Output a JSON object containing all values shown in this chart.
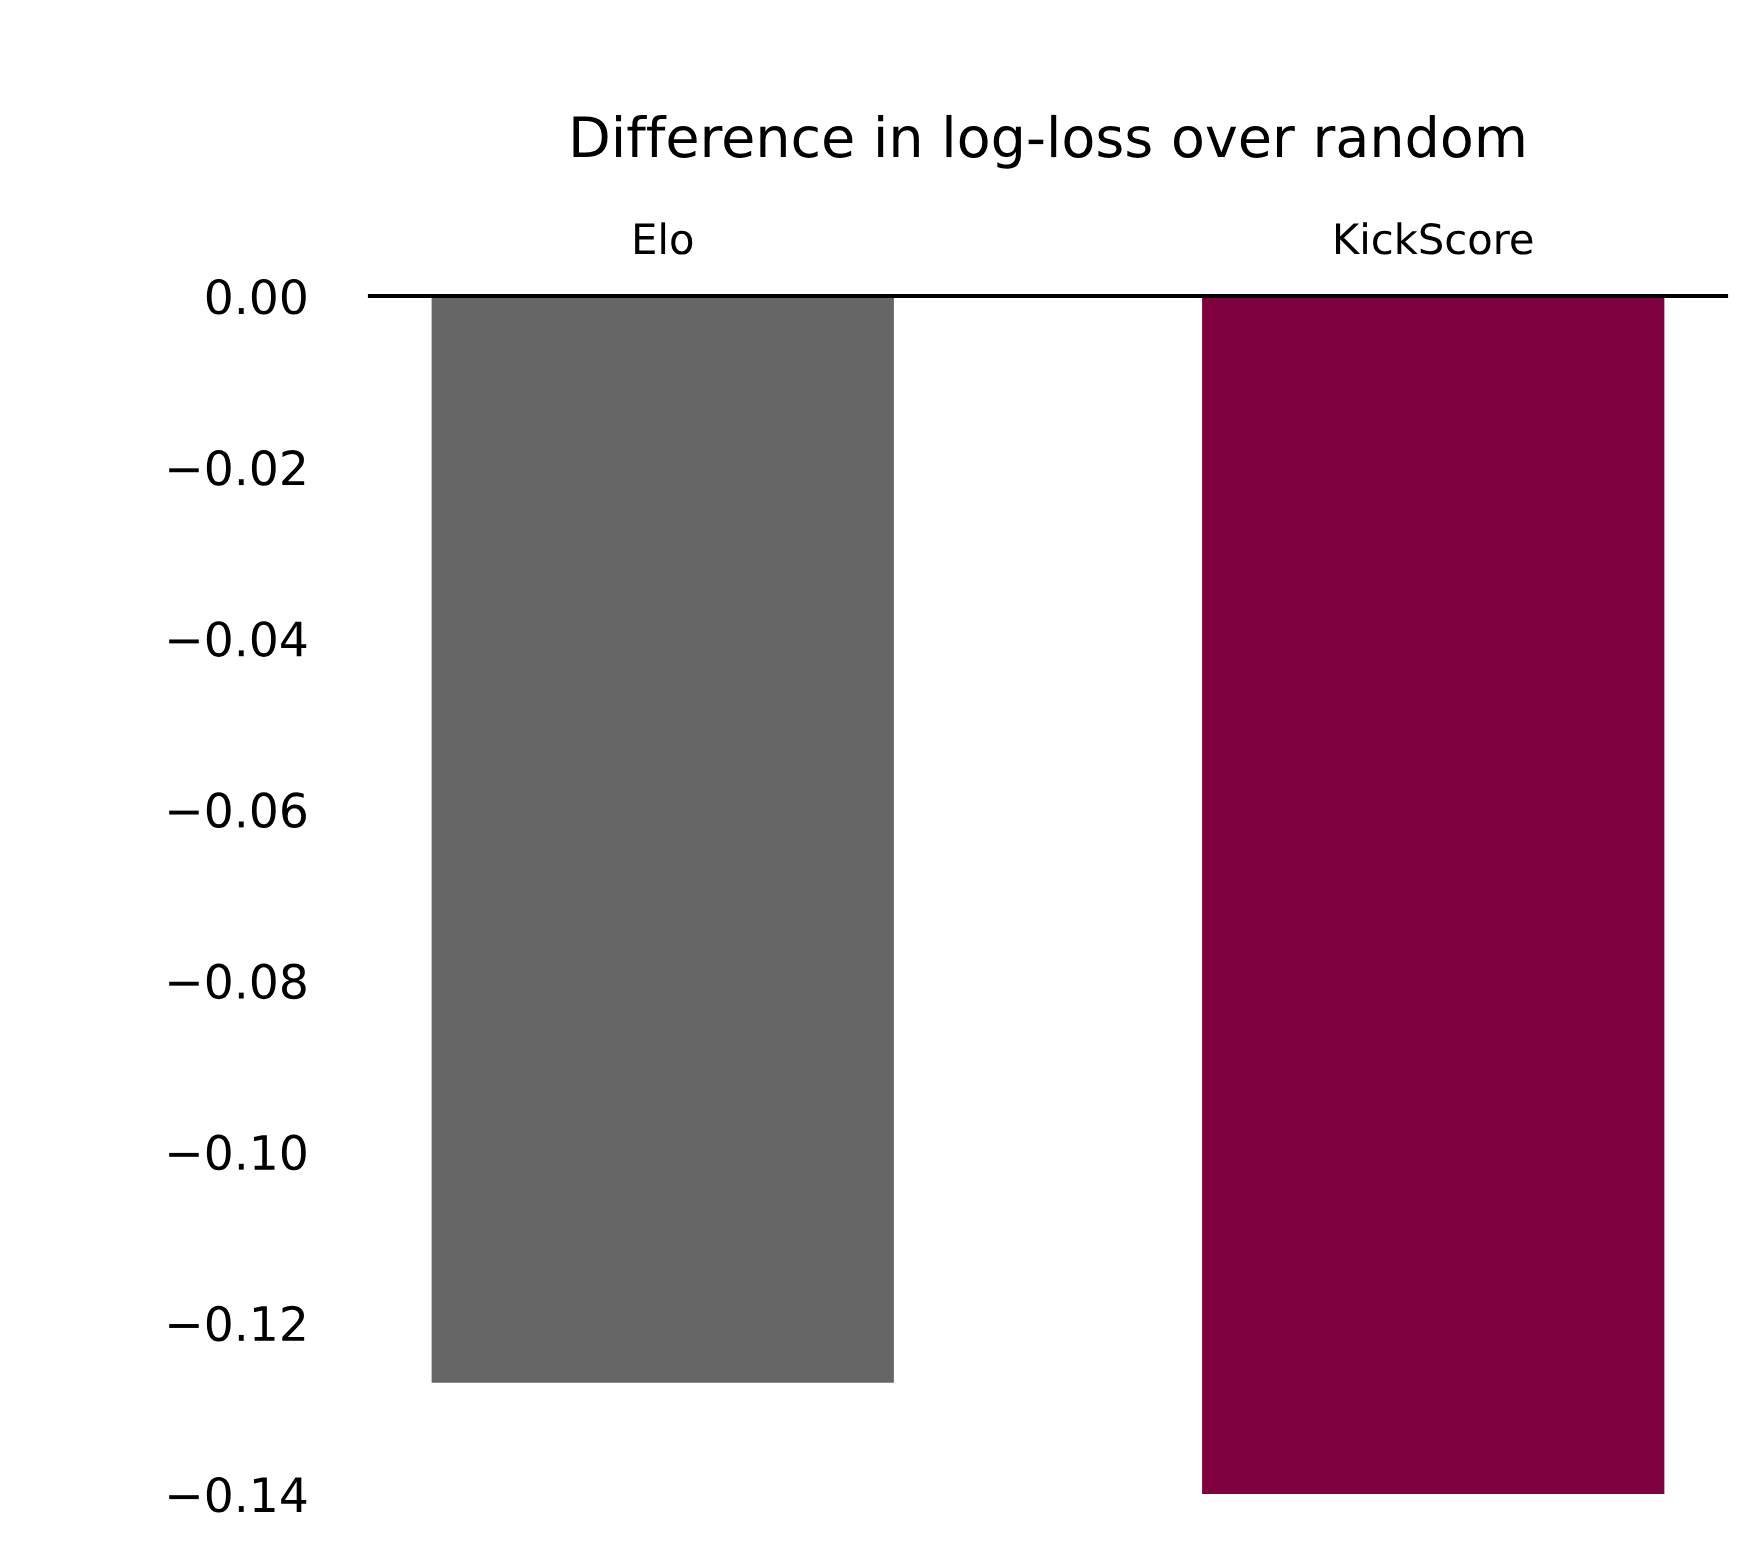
{
  "chart_data": {
    "type": "bar",
    "title": "Difference in log-loss over random",
    "categories": [
      "Elo",
      "KickScore"
    ],
    "values": [
      -0.127,
      -0.14
    ],
    "colors": [
      "#666666",
      "#7f003f"
    ],
    "ylim": [
      -0.14,
      0
    ],
    "yticks": [
      {
        "value": 0,
        "label": "0.00"
      },
      {
        "value": -0.02,
        "label": "−0.02"
      },
      {
        "value": -0.04,
        "label": "−0.04"
      },
      {
        "value": -0.06,
        "label": "−0.06"
      },
      {
        "value": -0.08,
        "label": "−0.08"
      },
      {
        "value": -0.1,
        "label": "−0.10"
      },
      {
        "value": -0.12,
        "label": "−0.12"
      },
      {
        "value": -0.14,
        "label": "−0.14"
      }
    ],
    "grid": false,
    "legend": false
  }
}
